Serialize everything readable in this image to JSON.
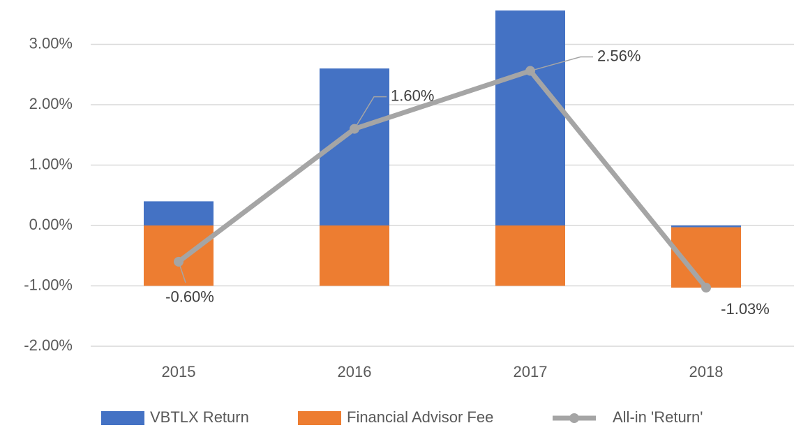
{
  "chart_data": {
    "type": "bar",
    "stacked": true,
    "categories": [
      "2015",
      "2016",
      "2017",
      "2018"
    ],
    "series": [
      {
        "name": "VBTLX Return",
        "color": "#4472c4",
        "values": [
          0.4,
          2.6,
          3.56,
          -0.03
        ]
      },
      {
        "name": "Financial Advisor Fee",
        "color": "#ed7d31",
        "values": [
          -1,
          -1,
          -1,
          -1
        ]
      },
      {
        "name": "All-in 'Return'",
        "type": "line",
        "color": "#a5a5a5",
        "values": [
          -0.6,
          1.6,
          2.56,
          -1.03
        ],
        "value_labels": [
          "-0.60%",
          "1.60%",
          "2.56%",
          "-1.03%"
        ]
      }
    ],
    "ylim": [
      -2,
      3.6
    ],
    "yticks": [
      {
        "value": -2,
        "label": "-2.00%"
      },
      {
        "value": -1,
        "label": "-1.00%"
      },
      {
        "value": 0,
        "label": "0.00%"
      },
      {
        "value": 1,
        "label": "1.00%"
      },
      {
        "value": 2,
        "label": "2.00%"
      },
      {
        "value": 3,
        "label": "3.00%"
      }
    ],
    "grid": true,
    "legend": "bottom"
  }
}
